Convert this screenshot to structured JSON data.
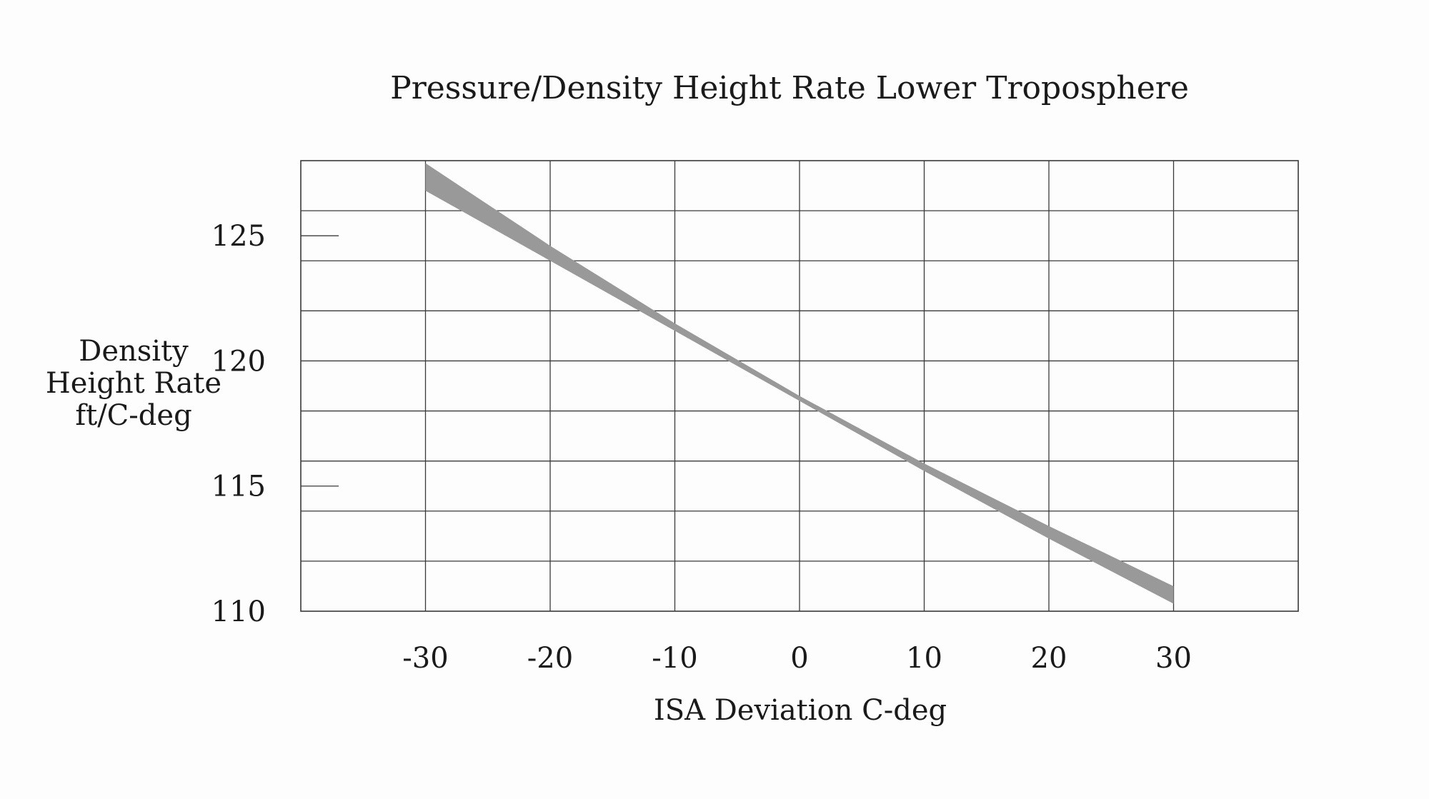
{
  "chart_data": {
    "type": "area",
    "title": "Pressure/Density Height Rate Lower Troposphere",
    "xlabel": "ISA Deviation C-deg",
    "ylabel_lines": [
      "Density",
      "Height Rate",
      "ft/C-deg"
    ],
    "xlim": [
      -40,
      40
    ],
    "ylim": [
      110,
      128
    ],
    "x_ticks": [
      -30,
      -20,
      -10,
      0,
      10,
      20,
      30
    ],
    "x_tick_labels": [
      "-30",
      "-20",
      "-10",
      "0",
      "10",
      "20",
      "30"
    ],
    "y_tick_values": [
      110,
      115,
      120,
      125
    ],
    "y_tick_labels": [
      "110",
      "115",
      "120",
      "125"
    ],
    "x_grid": [
      -40,
      -30,
      -20,
      -10,
      0,
      10,
      20,
      30,
      40
    ],
    "y_grid": [
      110,
      112,
      114,
      116,
      118,
      120,
      122,
      124,
      126,
      128
    ],
    "y_minor_ticks": [
      115,
      125
    ],
    "grid": true,
    "band_color": "#999999",
    "series": [
      {
        "x": [
          -30,
          -20,
          -10,
          0,
          10,
          20,
          30
        ],
        "y_lower": [
          126.8,
          124.0,
          121.2,
          118.4,
          115.6,
          112.9,
          110.3
        ],
        "y_upper": [
          127.9,
          124.6,
          121.5,
          118.6,
          115.9,
          113.4,
          111.0
        ]
      }
    ]
  }
}
